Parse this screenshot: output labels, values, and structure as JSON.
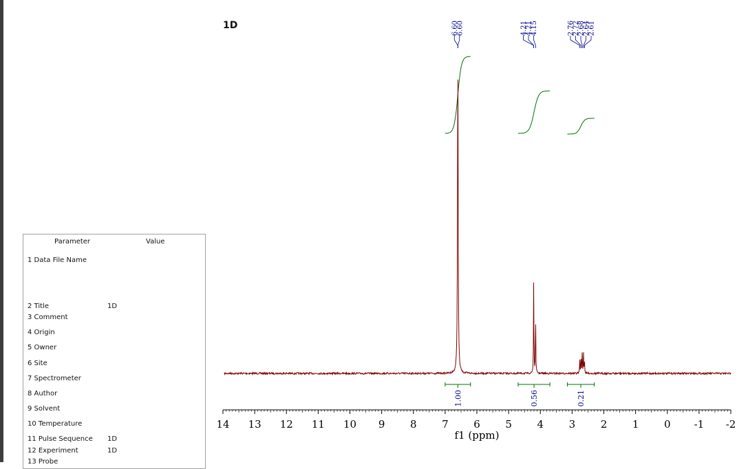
{
  "chart_data": {
    "type": "line",
    "title": "1D",
    "xlabel": "f1 (ppm)",
    "x_axis_reversed": true,
    "xlim": [
      14,
      -2
    ],
    "x_ticks": [
      "14",
      "13",
      "12",
      "11",
      "10",
      "9",
      "8",
      "7",
      "6",
      "5",
      "4",
      "3",
      "2",
      "1",
      "0",
      "-1",
      "-2"
    ],
    "spectrum_color": "#7f0000",
    "integral_color": "#007000",
    "label_color": "#00008b",
    "peak_labels": [
      "6.60",
      "6.60",
      "4.21",
      "4.21",
      "4.15",
      "2.76",
      "2.72",
      "2.68",
      "2.64",
      "2.61"
    ],
    "peaks": [
      {
        "ppm": 6.6,
        "relative_height": 1.0
      },
      {
        "ppm": 4.21,
        "relative_height": 0.29
      },
      {
        "ppm": 4.15,
        "relative_height": 0.19
      },
      {
        "ppm": 2.76,
        "relative_height": 0.04
      },
      {
        "ppm": 2.72,
        "relative_height": 0.06
      },
      {
        "ppm": 2.68,
        "relative_height": 0.07
      },
      {
        "ppm": 2.64,
        "relative_height": 0.06
      },
      {
        "ppm": 2.61,
        "relative_height": 0.04
      }
    ],
    "integrals": [
      {
        "from": 7.0,
        "to": 6.2,
        "value": "1.00"
      },
      {
        "from": 4.7,
        "to": 3.7,
        "value": "0.56"
      },
      {
        "from": 3.15,
        "to": 2.3,
        "value": "0.21"
      }
    ]
  },
  "parameters": {
    "header_param": "Parameter",
    "header_value": "Value",
    "rows": [
      {
        "label": "1  Data File Name",
        "value": ""
      },
      {
        "label": "2  Title",
        "value": "1D"
      },
      {
        "label": "3  Comment",
        "value": ""
      },
      {
        "label": "4  Origin",
        "value": ""
      },
      {
        "label": "5  Owner",
        "value": ""
      },
      {
        "label": "6  Site",
        "value": ""
      },
      {
        "label": "7  Spectrometer",
        "value": ""
      },
      {
        "label": "8  Author",
        "value": ""
      },
      {
        "label": "9  Solvent",
        "value": ""
      },
      {
        "label": "10  Temperature",
        "value": ""
      },
      {
        "label": "11  Pulse Sequence",
        "value": "1D"
      },
      {
        "label": "12  Experiment",
        "value": "1D"
      },
      {
        "label": "13  Probe",
        "value": ""
      }
    ]
  }
}
